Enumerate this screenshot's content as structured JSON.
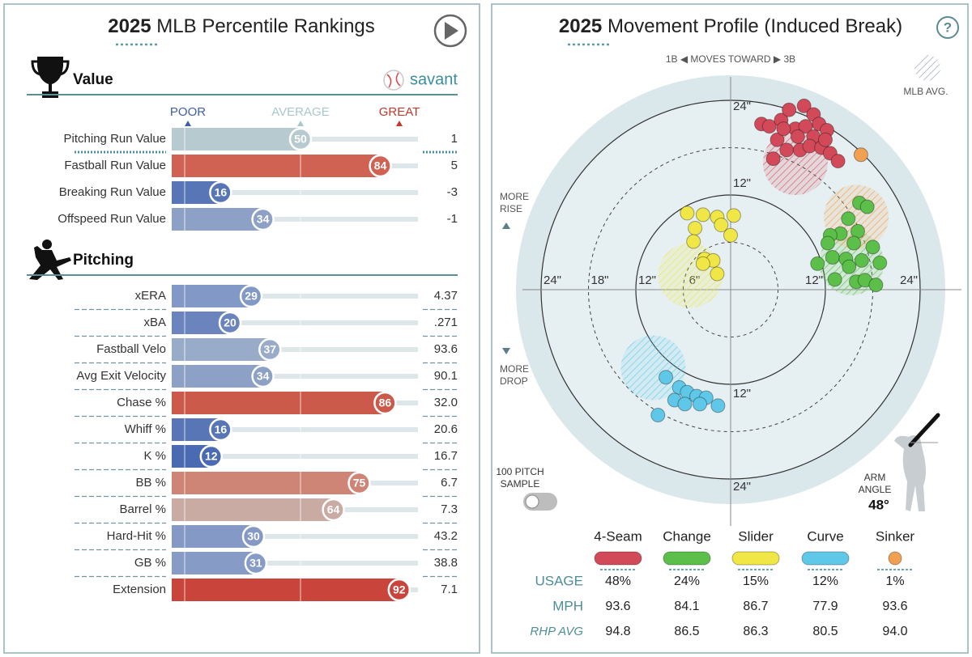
{
  "left": {
    "year": "2025",
    "title": "MLB Percentile Rankings",
    "brand": "savant",
    "scale_labels": [
      "POOR",
      "AVERAGE",
      "GREAT"
    ],
    "sections": [
      {
        "title": "Value",
        "rows": [
          {
            "label": "Pitching Run Value",
            "percentile": 50,
            "value": "1",
            "color": "#b7cad0"
          },
          {
            "label": "Fastball Run Value",
            "percentile": 84,
            "value": "5",
            "color": "#cf6252"
          },
          {
            "label": "Breaking Run Value",
            "percentile": 16,
            "value": "-3",
            "color": "#5875b6"
          },
          {
            "label": "Offspeed Run Value",
            "percentile": 34,
            "value": "-1",
            "color": "#8da0c6"
          }
        ]
      },
      {
        "title": "Pitching",
        "rows": [
          {
            "label": "xERA",
            "percentile": 29,
            "value": "4.37",
            "color": "#8298c6"
          },
          {
            "label": "xBA",
            "percentile": 20,
            "value": ".271",
            "color": "#6b84bd"
          },
          {
            "label": "Fastball Velo",
            "percentile": 37,
            "value": "93.6",
            "color": "#98acc9"
          },
          {
            "label": "Avg Exit Velocity",
            "percentile": 34,
            "value": "90.1",
            "color": "#8da0c6"
          },
          {
            "label": "Chase %",
            "percentile": 86,
            "value": "32.0",
            "color": "#cb5a4a"
          },
          {
            "label": "Whiff %",
            "percentile": 16,
            "value": "20.6",
            "color": "#5875b6"
          },
          {
            "label": "K %",
            "percentile": 12,
            "value": "16.7",
            "color": "#4a6bb1"
          },
          {
            "label": "BB %",
            "percentile": 75,
            "value": "6.7",
            "color": "#cf8576"
          },
          {
            "label": "Barrel %",
            "percentile": 64,
            "value": "7.3",
            "color": "#c9aba4"
          },
          {
            "label": "Hard-Hit %",
            "percentile": 30,
            "value": "43.2",
            "color": "#8499c6"
          },
          {
            "label": "GB %",
            "percentile": 31,
            "value": "38.8",
            "color": "#869bc6"
          },
          {
            "label": "Extension",
            "percentile": 92,
            "value": "7.1",
            "color": "#c9443a"
          }
        ]
      }
    ]
  },
  "chart_data": {
    "type": "scatter",
    "year": "2025",
    "title": "Movement Profile (Induced Break)",
    "help": "?",
    "direction_label": "1B ◀  MOVES TOWARD  ▶ 3B",
    "mlb_avg_label": "MLB AVG.",
    "rise_label": [
      "MORE",
      "RISE"
    ],
    "drop_label": [
      "MORE",
      "DROP"
    ],
    "sample_label": [
      "100 PITCH",
      "SAMPLE"
    ],
    "arm_angle_label": [
      "ARM",
      "ANGLE"
    ],
    "arm_angle": "48°",
    "xticks": [
      {
        "value": -24,
        "label": "24\""
      },
      {
        "value": -18,
        "label": "18\""
      },
      {
        "value": -12,
        "label": "12\""
      },
      {
        "value": -6,
        "label": "6\""
      },
      {
        "value": 12,
        "label": "12\""
      },
      {
        "value": 24,
        "label": "24\""
      }
    ],
    "yticks": [
      {
        "value": 24,
        "label": "24\""
      },
      {
        "value": 12,
        "label": "12\""
      },
      {
        "value": -12,
        "label": "12\""
      },
      {
        "value": -24,
        "label": "24\""
      }
    ],
    "table_labels": {
      "usage": "USAGE",
      "mph": "MPH",
      "rhp_avg": "RHP AVG"
    },
    "series": [
      {
        "name": "4-Seam",
        "color": "#d24a5a",
        "x": [
          3.9,
          4.9,
          6.4,
          7.4,
          9.3,
          10.5,
          11.2,
          12.2,
          8.2,
          9.5,
          10.5,
          5.9,
          7.1,
          8.8,
          10.0,
          11.5,
          12.6,
          13.6,
          5.4,
          12.0,
          6.7,
          8.5
        ],
        "y": [
          21.0,
          20.7,
          21.5,
          22.8,
          23.3,
          22.2,
          21.0,
          20.2,
          20.4,
          20.7,
          19.4,
          19.0,
          17.7,
          17.7,
          18.2,
          18.0,
          17.3,
          16.3,
          16.6,
          19.0,
          20.4,
          19.4
        ],
        "mlb_avg": [
          8.2,
          16.1
        ],
        "usage": "48%",
        "mph": "93.6",
        "rhp_avg": "94.8"
      },
      {
        "name": "Change",
        "color": "#5bbf4a",
        "x": [
          16.3,
          17.3,
          14.9,
          16.1,
          13.9,
          12.6,
          12.3,
          18.0,
          12.9,
          14.6,
          16.6,
          18.9,
          11.0,
          15.0,
          13.2,
          15.9,
          17.0,
          18.4,
          15.6
        ],
        "y": [
          11.0,
          10.5,
          9.0,
          7.4,
          7.1,
          6.9,
          5.9,
          5.4,
          4.1,
          3.9,
          3.7,
          3.4,
          3.3,
          2.9,
          1.3,
          1.0,
          1.2,
          0.6,
          5.9
        ],
        "mlb_avg": [
          15.3,
          3.4
        ],
        "usage": "24%",
        "mph": "84.1",
        "rhp_avg": "86.5"
      },
      {
        "name": "Slider",
        "color": "#f0e645",
        "x": [
          -5.5,
          -3.5,
          -1.7,
          0.4,
          -1.2,
          0.0,
          -4.5,
          -4.7,
          -3.3,
          -2.2,
          -3.5,
          -1.7
        ],
        "y": [
          9.7,
          9.5,
          9.2,
          9.4,
          8.2,
          6.9,
          7.8,
          6.1,
          3.9,
          3.7,
          3.3,
          2.0
        ],
        "mlb_avg": [
          -5.1,
          1.8
        ],
        "usage": "15%",
        "mph": "86.7",
        "rhp_avg": "86.3"
      },
      {
        "name": "Curve",
        "color": "#5fc8e8",
        "x": [
          -8.2,
          -6.5,
          -5.5,
          -7.1,
          -4.3,
          -3.1,
          -5.8,
          -3.9,
          -1.6,
          -9.2
        ],
        "y": [
          -11.1,
          -12.4,
          -13.0,
          -14.0,
          -13.5,
          -13.7,
          -14.5,
          -14.5,
          -14.7,
          -15.9
        ],
        "mlb_avg": [
          -9.8,
          -9.9
        ],
        "usage": "12%",
        "mph": "77.9",
        "rhp_avg": "80.5"
      },
      {
        "name": "Sinker",
        "color": "#f0a050",
        "x": [
          16.5
        ],
        "y": [
          17.1
        ],
        "mlb_avg": [
          15.9,
          9.2
        ],
        "usage": "1%",
        "mph": "93.6",
        "rhp_avg": "94.0"
      }
    ]
  }
}
